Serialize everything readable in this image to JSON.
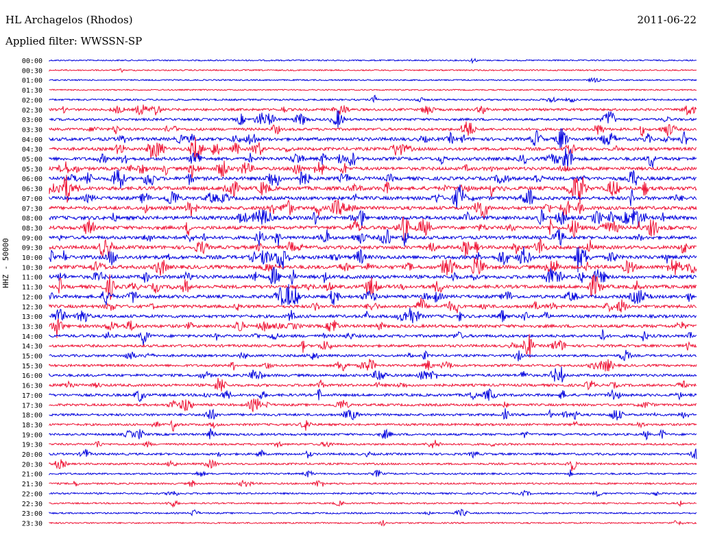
{
  "header": {
    "station": "HL Archagelos (Rhodos)",
    "date": "2011-06-22",
    "filter": "Applied filter: WWSSN-SP",
    "channel": "HHZ - 50000"
  },
  "colors": {
    "even": "#0000dd",
    "odd": "#ee1133"
  },
  "chart_data": {
    "type": "line",
    "title": "HL Archagelos (Rhodos)",
    "ylabel": "HHZ - 50000",
    "rows": [
      "00:00",
      "00:30",
      "01:00",
      "01:30",
      "02:00",
      "02:30",
      "03:00",
      "03:30",
      "04:00",
      "04:30",
      "05:00",
      "05:30",
      "06:00",
      "06:30",
      "07:00",
      "07:30",
      "08:00",
      "08:30",
      "09:00",
      "09:30",
      "10:00",
      "10:30",
      "11:00",
      "11:30",
      "12:00",
      "12:30",
      "13:00",
      "13:30",
      "14:00",
      "14:30",
      "15:00",
      "15:30",
      "16:00",
      "16:30",
      "17:00",
      "17:30",
      "18:00",
      "18:30",
      "19:00",
      "19:30",
      "20:00",
      "20:30",
      "21:00",
      "21:30",
      "22:00",
      "22:30",
      "23:00",
      "23:30"
    ],
    "activity": [
      0.05,
      0.04,
      0.05,
      0.03,
      0.15,
      0.3,
      0.3,
      0.35,
      0.5,
      0.45,
      0.5,
      0.5,
      0.55,
      0.6,
      0.55,
      0.55,
      0.6,
      0.55,
      0.5,
      0.55,
      0.6,
      0.6,
      0.55,
      0.55,
      0.5,
      0.45,
      0.45,
      0.45,
      0.4,
      0.35,
      0.3,
      0.3,
      0.35,
      0.35,
      0.35,
      0.3,
      0.3,
      0.25,
      0.25,
      0.2,
      0.25,
      0.2,
      0.15,
      0.15,
      0.15,
      0.1,
      0.1,
      0.08
    ]
  }
}
